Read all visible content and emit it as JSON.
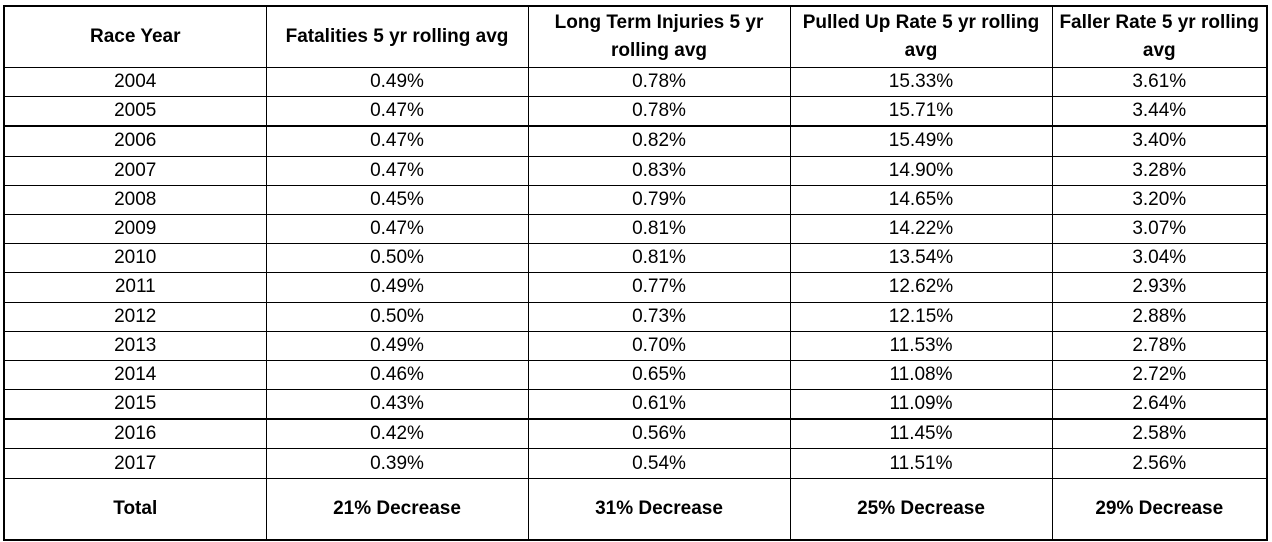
{
  "chart_data": {
    "type": "table",
    "columns": [
      "Race Year",
      "Fatalities 5 yr rolling avg",
      "Long Term Injuries 5 yr rolling avg",
      "Pulled Up Rate 5 yr rolling avg",
      "Faller Rate 5 yr rolling avg"
    ],
    "rows": [
      [
        "2004",
        "0.49%",
        "0.78%",
        "15.33%",
        "3.61%"
      ],
      [
        "2005",
        "0.47%",
        "0.78%",
        "15.71%",
        "3.44%"
      ],
      [
        "2006",
        "0.47%",
        "0.82%",
        "15.49%",
        "3.40%"
      ],
      [
        "2007",
        "0.47%",
        "0.83%",
        "14.90%",
        "3.28%"
      ],
      [
        "2008",
        "0.45%",
        "0.79%",
        "14.65%",
        "3.20%"
      ],
      [
        "2009",
        "0.47%",
        "0.81%",
        "14.22%",
        "3.07%"
      ],
      [
        "2010",
        "0.50%",
        "0.81%",
        "13.54%",
        "3.04%"
      ],
      [
        "2011",
        "0.49%",
        "0.77%",
        "12.62%",
        "2.93%"
      ],
      [
        "2012",
        "0.50%",
        "0.73%",
        "12.15%",
        "2.88%"
      ],
      [
        "2013",
        "0.49%",
        "0.70%",
        "11.53%",
        "2.78%"
      ],
      [
        "2014",
        "0.46%",
        "0.65%",
        "11.08%",
        "2.72%"
      ],
      [
        "2015",
        "0.43%",
        "0.61%",
        "11.09%",
        "2.64%"
      ],
      [
        "2016",
        "0.42%",
        "0.56%",
        "11.45%",
        "2.58%"
      ],
      [
        "2017",
        "0.39%",
        "0.54%",
        "11.51%",
        "2.56%"
      ]
    ],
    "total": [
      "Total",
      "21% Decrease",
      "31% Decrease",
      "25% Decrease",
      "29% Decrease"
    ]
  }
}
